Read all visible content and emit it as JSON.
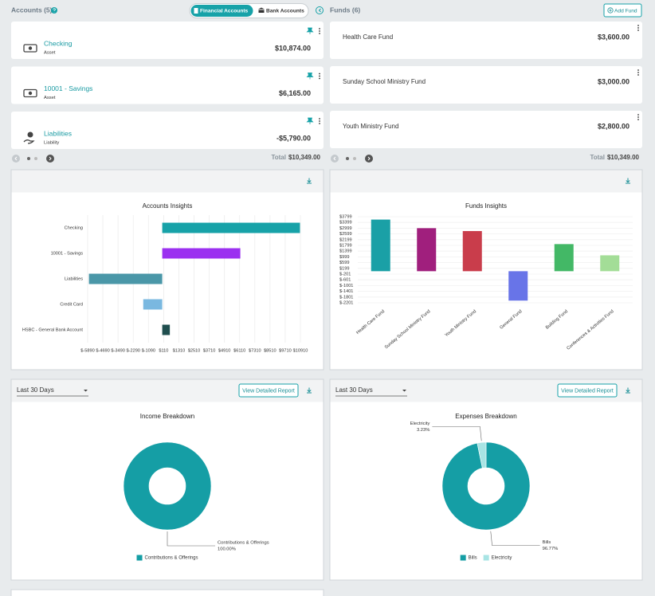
{
  "header": {
    "accounts_title": "Accounts (5)",
    "toggle": [
      "Financial Accounts",
      "Bank Accounts"
    ],
    "funds_title": "Funds (6)",
    "add_fund": "Add Fund"
  },
  "accounts": {
    "cards": [
      {
        "name": "Checking",
        "type": "Asset",
        "amount": "$10,874.00"
      },
      {
        "name": "10001 - Savings",
        "type": "Asset",
        "amount": "$6,165.00"
      },
      {
        "name": "Liabilities",
        "type": "Liability",
        "amount": "-$5,790.00"
      }
    ],
    "total_label": "Total",
    "total": "$10,349.00"
  },
  "funds": {
    "cards": [
      {
        "name": "Health Care Fund",
        "amount": "$3,600.00"
      },
      {
        "name": "Sunday School Ministry Fund",
        "amount": "$3,000.00"
      },
      {
        "name": "Youth Ministry Fund",
        "amount": "$2,800.00"
      }
    ],
    "total_label": "Total",
    "total": "$10,349.00"
  },
  "panels": [
    {
      "period": "Last 30 Days",
      "button": "View Detailed Report"
    },
    {
      "period": "Last 30 Days",
      "button": "View Detailed Report"
    }
  ],
  "chart_data": [
    {
      "type": "bar",
      "orientation": "horizontal",
      "title": "Accounts Insights",
      "categories": [
        "Checking",
        "10001 - Savings",
        "Liabilities",
        "Credit Card",
        "HSBC - General Bank Account"
      ],
      "values": [
        10874,
        6165,
        -5790,
        -1500,
        600
      ],
      "colors": [
        "#17a2a8",
        "#9b30f0",
        "#4a97a8",
        "#7ab8e0",
        "#1f4e4e"
      ],
      "xlim": [
        -5890,
        10910
      ],
      "xticks": [
        {
          "value": -5890,
          "label": "$-5890"
        },
        {
          "value": -4690,
          "label": "$-4690"
        },
        {
          "value": -3490,
          "label": "$-3490"
        },
        {
          "value": -2290,
          "label": "$-2290"
        },
        {
          "value": -1090,
          "label": "$-1090"
        },
        {
          "value": 110,
          "label": "$110"
        },
        {
          "value": 1310,
          "label": "$1310"
        },
        {
          "value": 2510,
          "label": "$2510"
        },
        {
          "value": 3710,
          "label": "$3710"
        },
        {
          "value": 4910,
          "label": "$4910"
        },
        {
          "value": 6110,
          "label": "$6110"
        },
        {
          "value": 7310,
          "label": "$7310"
        },
        {
          "value": 8510,
          "label": "$8510"
        },
        {
          "value": 9710,
          "label": "$9710"
        },
        {
          "value": 10910,
          "label": "$10910"
        }
      ],
      "grid": true
    },
    {
      "type": "bar",
      "title": "Funds Insights",
      "categories": [
        "Health Care Fund",
        "Sunday School Ministry Fund",
        "Youth Ministry Fund",
        "General Fund",
        "Building Fund",
        "Conferences & Activities Fund"
      ],
      "values": [
        3600,
        3000,
        2800,
        -2050,
        1890,
        1109
      ],
      "colors": [
        "#1aa0a6",
        "#a01f7d",
        "#c93d4b",
        "#6874e8",
        "#43b866",
        "#a3dd97"
      ],
      "ylim": [
        -2201,
        3799
      ],
      "yticks": [
        {
          "value": 3799,
          "label": "$3799"
        },
        {
          "value": 3399,
          "label": "$3399"
        },
        {
          "value": 2999,
          "label": "$2999"
        },
        {
          "value": 2599,
          "label": "$2599"
        },
        {
          "value": 2199,
          "label": "$2199"
        },
        {
          "value": 1799,
          "label": "$1799"
        },
        {
          "value": 1399,
          "label": "$1399"
        },
        {
          "value": 999,
          "label": "$999"
        },
        {
          "value": 599,
          "label": "$599"
        },
        {
          "value": 199,
          "label": "$199"
        },
        {
          "value": -201,
          "label": "$-201"
        },
        {
          "value": -601,
          "label": "$-601"
        },
        {
          "value": -1001,
          "label": "$-1001"
        },
        {
          "value": -1401,
          "label": "$-1401"
        },
        {
          "value": -1801,
          "label": "$-1801"
        },
        {
          "value": -2201,
          "label": "$-2201"
        }
      ],
      "grid": true
    },
    {
      "type": "donut",
      "title": "Income Breakdown",
      "categories": [
        "Contributions & Offerings"
      ],
      "values": [
        100
      ],
      "value_labels": [
        "100.00%"
      ],
      "colors": [
        "#159ea5"
      ],
      "legend": "bottom"
    },
    {
      "type": "donut",
      "title": "Expenses Breakdown",
      "categories": [
        "Bills",
        "Electricity"
      ],
      "values": [
        96.77,
        3.23
      ],
      "value_labels": [
        "96.77%",
        "3.23%"
      ],
      "colors": [
        "#159ea5",
        "#a8e4e4"
      ],
      "legend": "bottom"
    }
  ]
}
